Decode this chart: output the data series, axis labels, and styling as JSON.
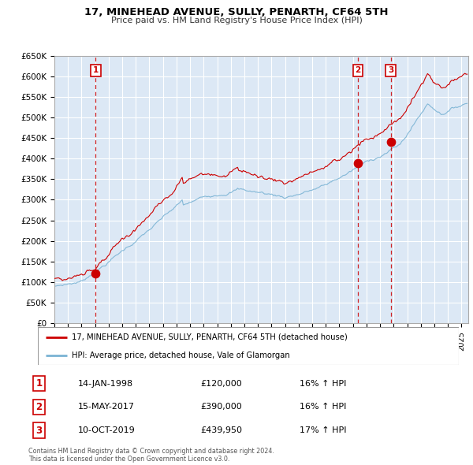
{
  "title": "17, MINEHEAD AVENUE, SULLY, PENARTH, CF64 5TH",
  "subtitle": "Price paid vs. HM Land Registry's House Price Index (HPI)",
  "ylabel_ticks": [
    "£0",
    "£50K",
    "£100K",
    "£150K",
    "£200K",
    "£250K",
    "£300K",
    "£350K",
    "£400K",
    "£450K",
    "£500K",
    "£550K",
    "£600K",
    "£650K"
  ],
  "ytick_values": [
    0,
    50000,
    100000,
    150000,
    200000,
    250000,
    300000,
    350000,
    400000,
    450000,
    500000,
    550000,
    600000,
    650000
  ],
  "hpi_color": "#7ab3d4",
  "price_color": "#cc0000",
  "sale_color": "#cc0000",
  "dashed_line_color": "#cc0000",
  "background_color": "#dce8f5",
  "grid_color": "#ffffff",
  "sales": [
    {
      "date_num": 1998.04,
      "price": 120000,
      "label": "1"
    },
    {
      "date_num": 2017.37,
      "price": 390000,
      "label": "2"
    },
    {
      "date_num": 2019.78,
      "price": 439950,
      "label": "3"
    }
  ],
  "legend_price_label": "17, MINEHEAD AVENUE, SULLY, PENARTH, CF64 5TH (detached house)",
  "legend_hpi_label": "HPI: Average price, detached house, Vale of Glamorgan",
  "table_rows": [
    {
      "num": "1",
      "date": "14-JAN-1998",
      "price": "£120,000",
      "change": "16% ↑ HPI"
    },
    {
      "num": "2",
      "date": "15-MAY-2017",
      "price": "£390,000",
      "change": "16% ↑ HPI"
    },
    {
      "num": "3",
      "date": "10-OCT-2019",
      "price": "£439,950",
      "change": "17% ↑ HPI"
    }
  ],
  "footer": "Contains HM Land Registry data © Crown copyright and database right 2024.\nThis data is licensed under the Open Government Licence v3.0.",
  "xmin": 1995.0,
  "xmax": 2025.5,
  "ymin": 0,
  "ymax": 650000
}
